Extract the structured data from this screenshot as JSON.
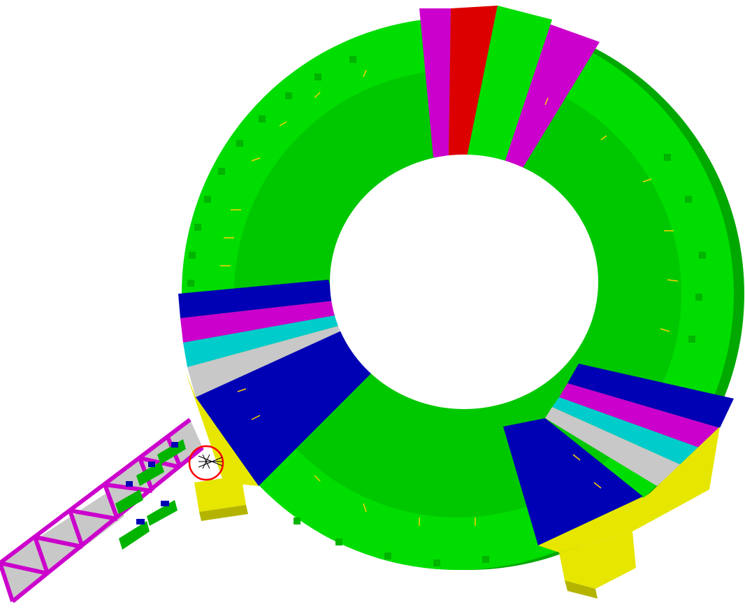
{
  "scene": {
    "background": "#ffffff",
    "colors": {
      "ring_green": "#00dd00",
      "ring_green_dark": "#00b400",
      "ring_green_side": "#00a800",
      "sector_magenta": "#cc00cc",
      "sector_red": "#dd0000",
      "sector_blue": "#0000b4",
      "sector_cyan": "#00cccc",
      "sector_gray": "#c8c8c8",
      "support_yellow": "#e6e600",
      "support_yellow_dark": "#b4b400",
      "truss_magenta": "#cc00cc",
      "truss_gray": "#c8c8c8",
      "marker_red": "#ff0000",
      "detail_yellow": "#ffd200"
    },
    "objects": [
      "toroidal-ring-structure",
      "top-magenta-sectors",
      "top-red-sector",
      "left-colored-sectors",
      "bottom-blue-sectors",
      "right-colored-sectors",
      "yellow-support-feet",
      "truss-arm",
      "selection-marker"
    ]
  }
}
